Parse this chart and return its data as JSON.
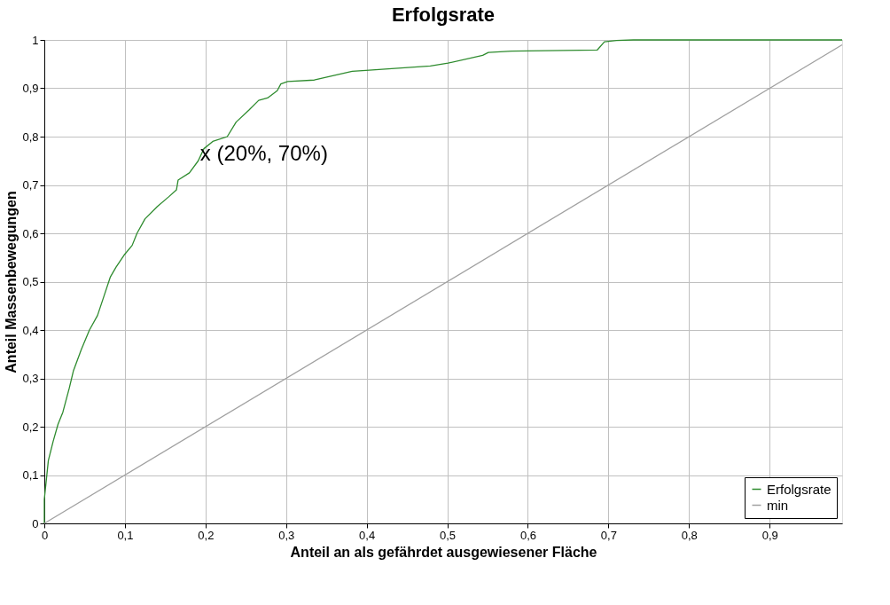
{
  "chart_data": {
    "type": "line",
    "title": "Erfolgsrate",
    "xlabel": "Anteil an als gefährdet ausgewiesener Fläche",
    "ylabel": "Anteil Massenbewegungen",
    "xlim": [
      0,
      0.99
    ],
    "ylim": [
      0,
      1
    ],
    "xticks": [
      0,
      {
        "value": 0.1,
        "label": "0,1"
      },
      {
        "value": 0.2,
        "label": "0,2"
      },
      {
        "value": 0.3,
        "label": "0,3"
      },
      {
        "value": 0.4,
        "label": "0,4"
      },
      {
        "value": 0.5,
        "label": "0,5"
      },
      {
        "value": 0.6,
        "label": "0,6"
      },
      {
        "value": 0.7,
        "label": "0,7"
      },
      {
        "value": 0.8,
        "label": "0,8"
      },
      {
        "value": 0.9,
        "label": "0,9"
      }
    ],
    "yticks": [
      0,
      {
        "value": 0.1,
        "label": "0,1"
      },
      {
        "value": 0.2,
        "label": "0,2"
      },
      {
        "value": 0.3,
        "label": "0,3"
      },
      {
        "value": 0.4,
        "label": "0,4"
      },
      {
        "value": 0.5,
        "label": "0,5"
      },
      {
        "value": 0.6,
        "label": "0,6"
      },
      {
        "value": 0.7,
        "label": "0,7"
      },
      {
        "value": 0.8,
        "label": "0,8"
      },
      {
        "value": 0.9,
        "label": "0,9"
      },
      1
    ],
    "grid": true,
    "legend": "bottom right",
    "marker": "none",
    "line_style": "solid",
    "annotations": [
      {
        "text": "x (20%, 70%)",
        "x": 0.2,
        "y": 0.77
      }
    ],
    "series": [
      {
        "name": "Erfolgsrate",
        "color": "#2e8b2e",
        "x": [
          0,
          0.0,
          0.005,
          0.011,
          0.017,
          0.023,
          0.031,
          0.036,
          0.046,
          0.056,
          0.066,
          0.074,
          0.082,
          0.089,
          0.099,
          0.109,
          0.115,
          0.125,
          0.14,
          0.154,
          0.164,
          0.166,
          0.18,
          0.191,
          0.198,
          0.209,
          0.227,
          0.238,
          0.254,
          0.266,
          0.277,
          0.289,
          0.2935,
          0.302,
          0.335,
          0.382,
          0.399,
          0.479,
          0.501,
          0.544,
          0.551,
          0.58,
          0.686,
          0.695,
          0.71,
          0.731,
          0.99
        ],
        "values": [
          0,
          0.05,
          0.13,
          0.17,
          0.205,
          0.23,
          0.28,
          0.315,
          0.36,
          0.4,
          0.43,
          0.47,
          0.51,
          0.53,
          0.555,
          0.575,
          0.6,
          0.63,
          0.655,
          0.675,
          0.69,
          0.71,
          0.725,
          0.75,
          0.775,
          0.79,
          0.8,
          0.83,
          0.855,
          0.875,
          0.88,
          0.895,
          0.909,
          0.914,
          0.917,
          0.935,
          0.937,
          0.946,
          0.952,
          0.968,
          0.974,
          0.977,
          0.979,
          0.996,
          0.999,
          1.0,
          1.0
        ]
      },
      {
        "name": "min",
        "color": "#a0a0a0",
        "x": [
          0,
          0.99
        ],
        "values": [
          0,
          0.99
        ]
      }
    ]
  }
}
